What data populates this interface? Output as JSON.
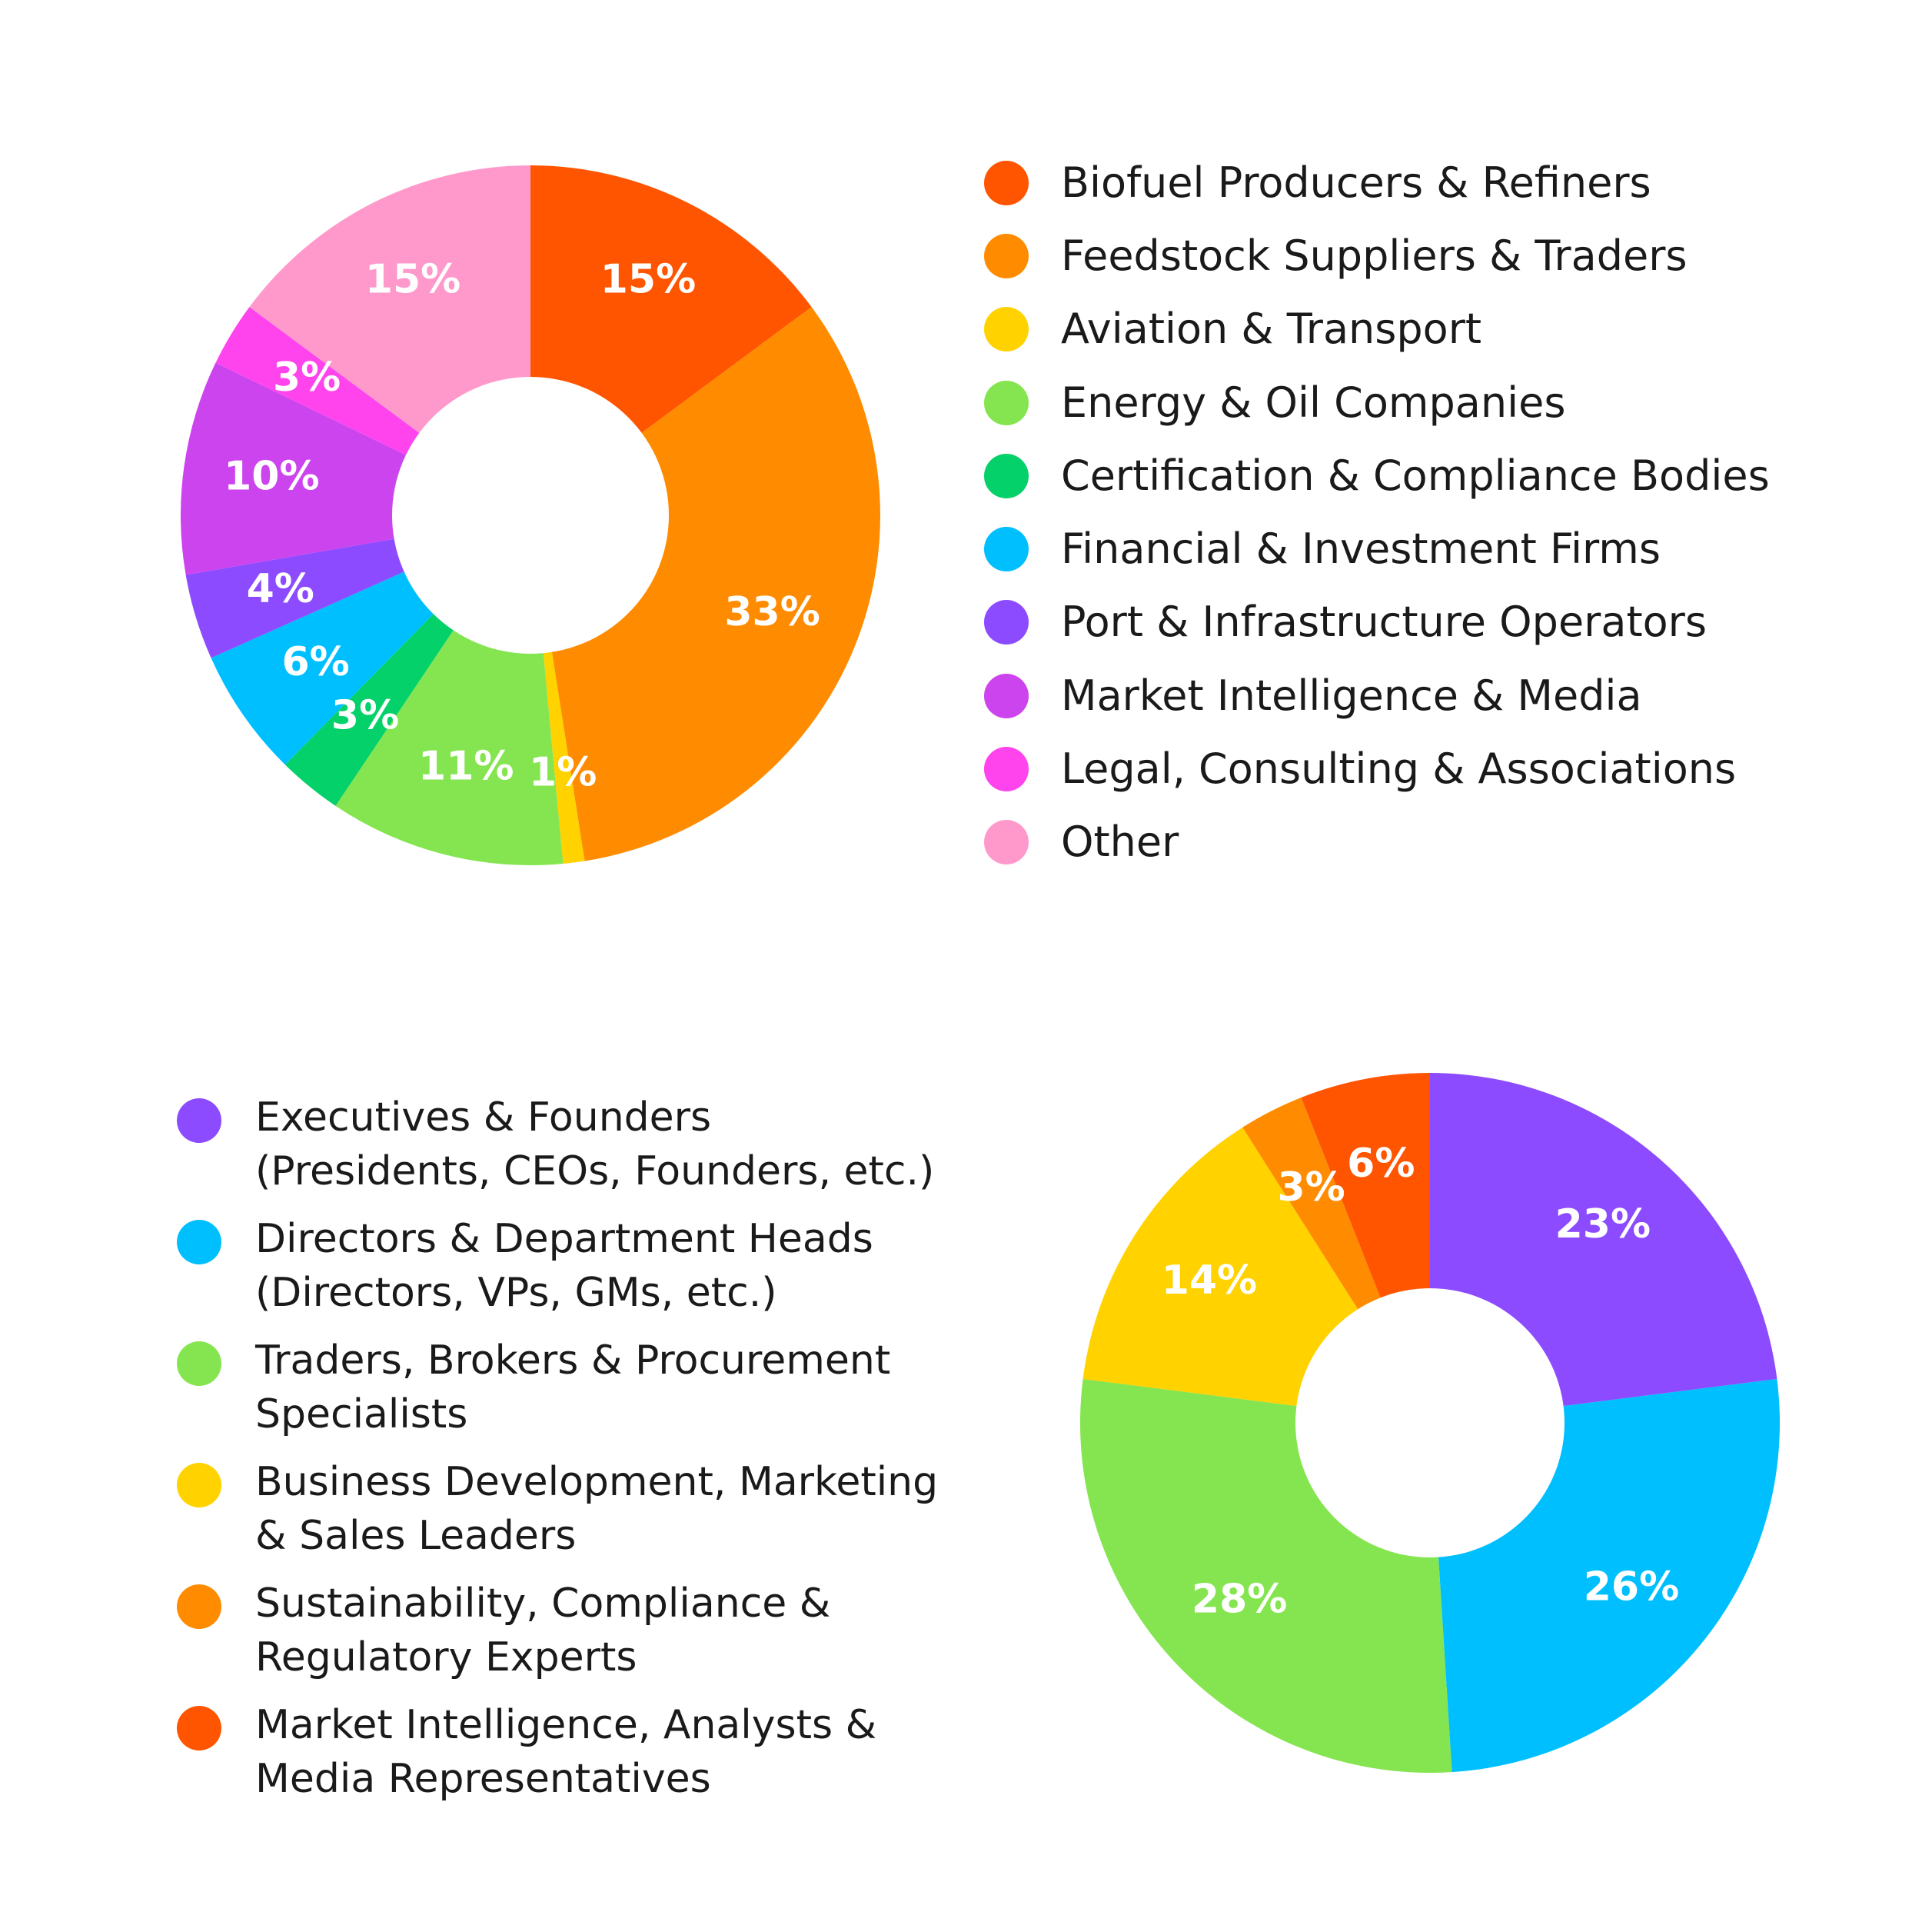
{
  "chart_data": [
    {
      "type": "pie",
      "title": "",
      "categories": [
        "Biofuel Producers & Refiners",
        "Feedstock Suppliers & Traders",
        "Aviation & Transport",
        "Energy & Oil Companies",
        "Certification & Compliance Bodies",
        "Financial & Investment Firms",
        "Port & Infrastructure Operators",
        "Market Intelligence & Media",
        "Legal, Consulting & Associations",
        "Other"
      ],
      "values": [
        15,
        33,
        1,
        11,
        3,
        6,
        4,
        10,
        3,
        15
      ],
      "labels": [
        "15%",
        "33%",
        "1%",
        "11%",
        "3%",
        "6%",
        "4%",
        "10%",
        "3%",
        "15%"
      ],
      "colors": [
        "#FF5500",
        "#FF8C00",
        "#FFD200",
        "#85E550",
        "#05D16A",
        "#00BFFF",
        "#8C4BFF",
        "#CC44EE",
        "#FF44EE",
        "#FF99CC"
      ],
      "donut": true,
      "legend_position": "right"
    },
    {
      "type": "pie",
      "title": "",
      "categories": [
        "Executives & Founders (Presidents, CEOs, Founders, etc.)",
        "Directors & Department Heads (Directors, VPs, GMs, etc.)",
        "Traders, Brokers & Procurement Specialists",
        "Business Development, Marketing & Sales Leaders",
        "Sustainability, Compliance & Regulatory Experts",
        "Market Intelligence, Analysts & Media Representatives"
      ],
      "values": [
        23,
        26,
        28,
        14,
        3,
        6
      ],
      "labels": [
        "23%",
        "26%",
        "28%",
        "14%",
        "3%",
        "6%"
      ],
      "colors": [
        "#8C4BFF",
        "#00BFFF",
        "#85E550",
        "#FFD200",
        "#FF8C00",
        "#FF5500"
      ],
      "donut": true,
      "legend_position": "left"
    }
  ],
  "legend2_lines": [
    [
      "Executives & Founders",
      "(Presidents, CEOs, Founders, etc.)"
    ],
    [
      "Directors & Department Heads",
      "(Directors, VPs, GMs, etc.)"
    ],
    [
      "Traders, Brokers & Procurement",
      "Specialists"
    ],
    [
      "Business Development, Marketing",
      "& Sales Leaders"
    ],
    [
      "Sustainability, Compliance &",
      "Regulatory Experts"
    ],
    [
      "Market Intelligence, Analysts &",
      "Media Representatives"
    ]
  ]
}
